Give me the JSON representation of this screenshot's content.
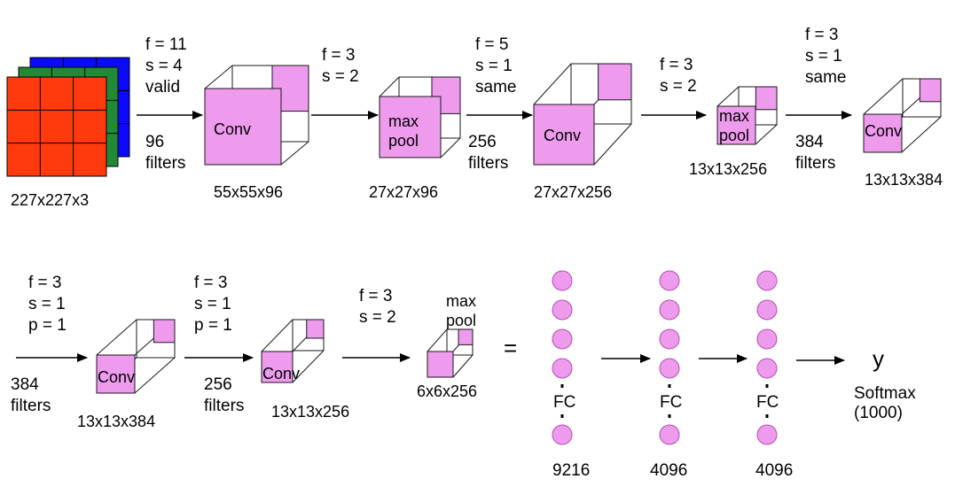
{
  "colors": {
    "pink": "#ee9bee",
    "pink_stroke": "#b04fb0",
    "red": "#ff3a0d",
    "green": "#218a36",
    "blue": "#0a0aff"
  },
  "input": {
    "dims": "227x227x3"
  },
  "row1": [
    {
      "params": [
        "f = 11",
        "s = 4",
        "valid"
      ],
      "filters": [
        "96",
        "filters"
      ],
      "label": "Conv",
      "dims": "55x55x96"
    },
    {
      "params": [
        "f = 3",
        "s = 2"
      ],
      "filters": [],
      "label": [
        "max",
        "pool"
      ],
      "dims": "27x27x96"
    },
    {
      "params": [
        "f = 5",
        "s = 1",
        "same"
      ],
      "filters": [
        "256",
        "filters"
      ],
      "label": "Conv",
      "dims": "27x27x256"
    },
    {
      "params": [
        "f = 3",
        "s = 2"
      ],
      "filters": [],
      "label": [
        "max",
        "pool"
      ],
      "dims": "13x13x256"
    },
    {
      "params": [
        "f = 3",
        "s = 1",
        "same"
      ],
      "filters": [
        "384",
        "filters"
      ],
      "label": "Conv",
      "dims": "13x13x384"
    }
  ],
  "row2": [
    {
      "params": [
        "f = 3",
        "s = 1",
        "p = 1"
      ],
      "filters": [
        "384",
        "filters"
      ],
      "label": "Conv",
      "dims": "13x13x384"
    },
    {
      "params": [
        "f = 3",
        "s = 1",
        "p = 1"
      ],
      "filters": [
        "256",
        "filters"
      ],
      "label": "Conv",
      "dims": "13x13x256"
    },
    {
      "params": [
        "f = 3",
        "s = 2"
      ],
      "filters": [],
      "label": [
        "max",
        "pool"
      ],
      "dims": "6x6x256"
    }
  ],
  "equals": "=",
  "fc_layers": [
    {
      "label": "FC",
      "size": "9216"
    },
    {
      "label": "FC",
      "size": "4096"
    },
    {
      "label": "FC",
      "size": "4096"
    }
  ],
  "output": {
    "symbol": "y",
    "name": "Softmax",
    "classes": "(1000)"
  }
}
